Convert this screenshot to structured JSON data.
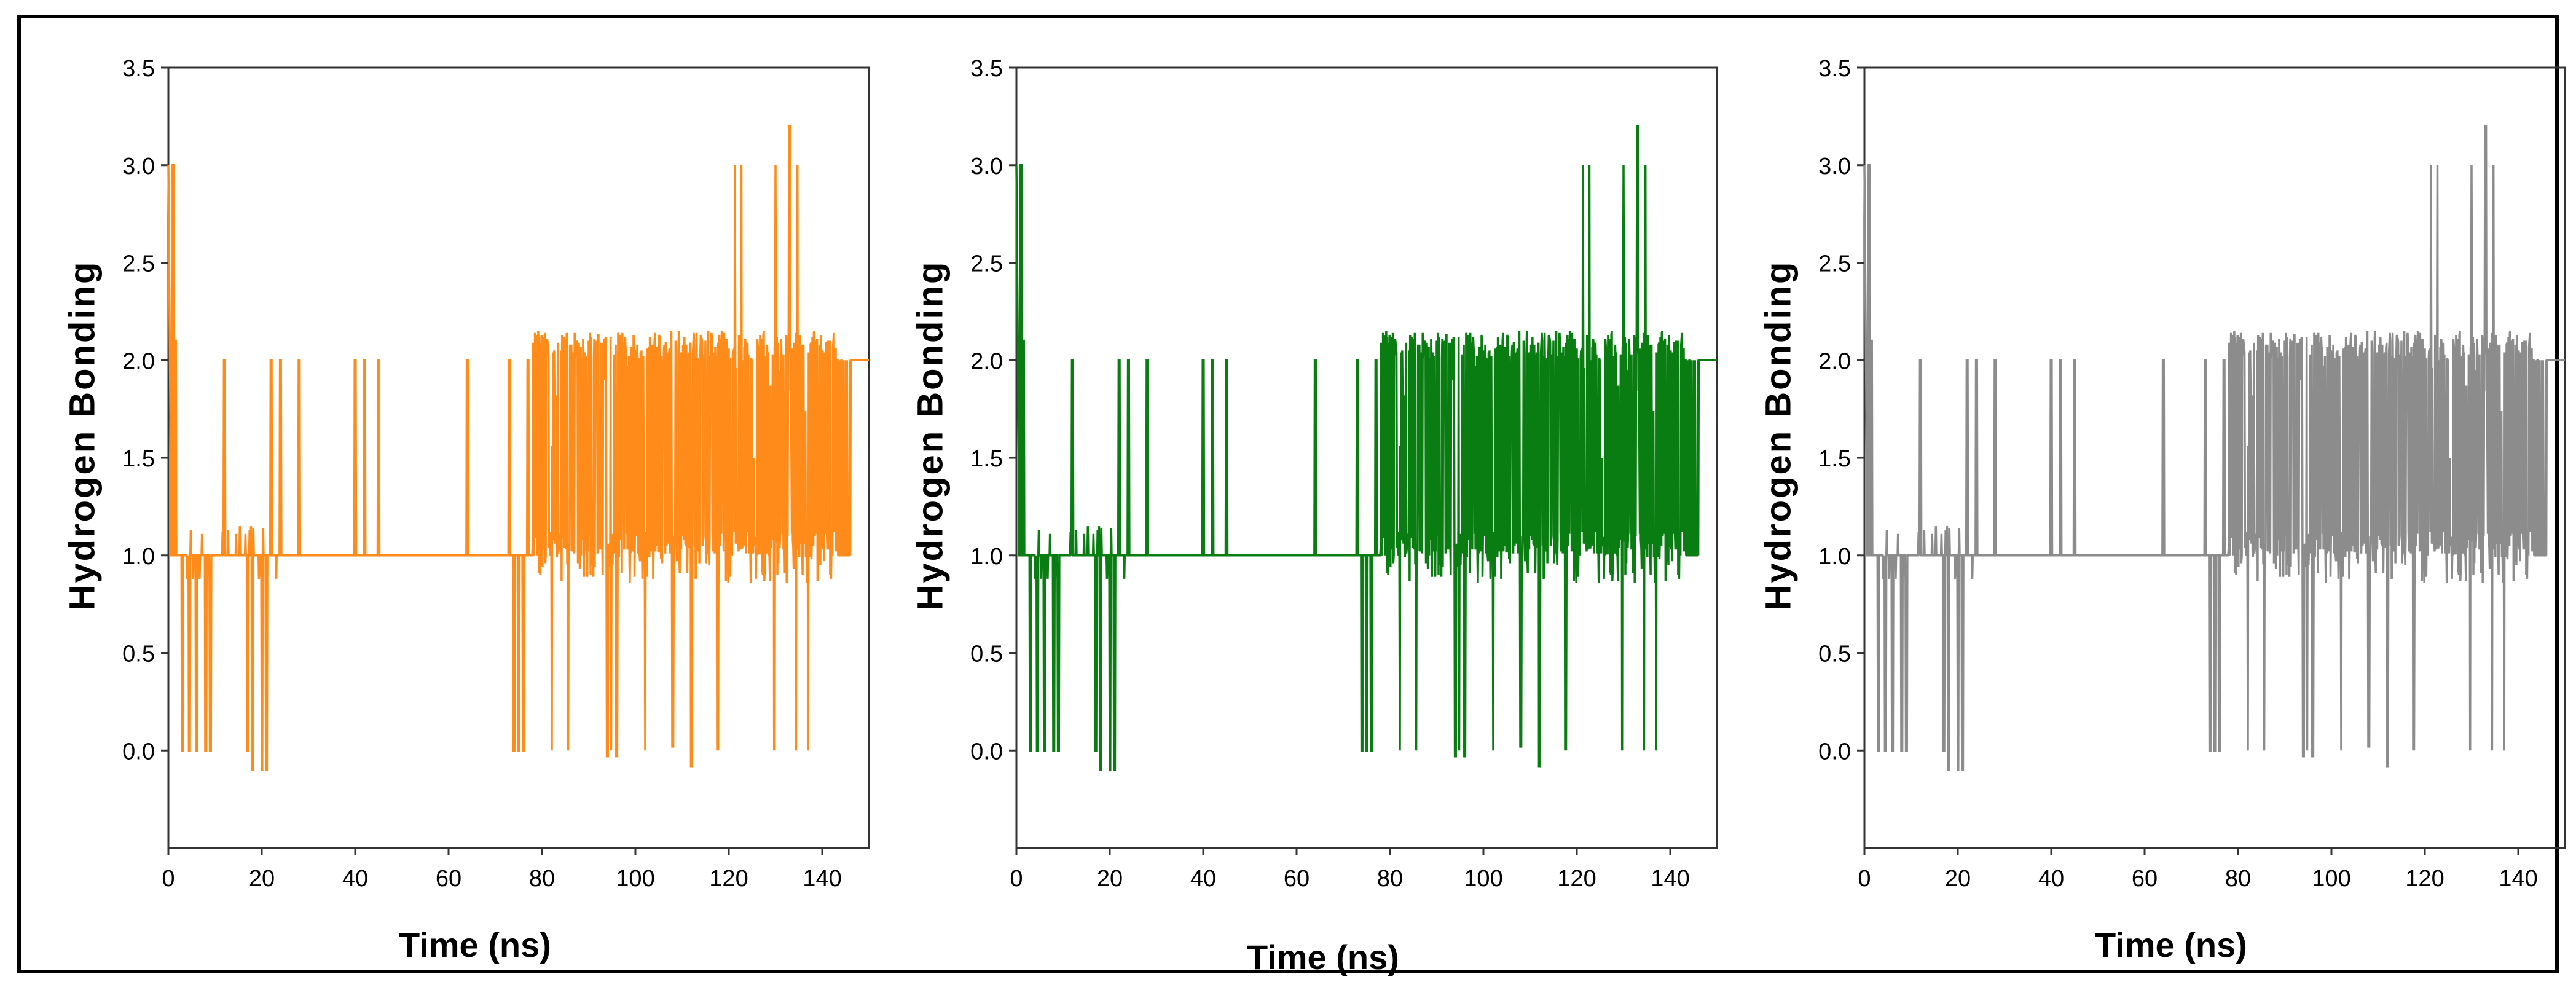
{
  "chart_data": [
    {
      "type": "line",
      "panel": "left",
      "color": "#FF8C1A",
      "xlabel": "Time (ns)",
      "ylabel": "Hydrogen Bonding",
      "xlim": [
        0,
        150
      ],
      "ylim": [
        -0.5,
        3.5
      ],
      "x_ticks": [
        "0",
        "20",
        "40",
        "60",
        "80",
        "100",
        "120",
        "140"
      ],
      "y_ticks": [
        "0.0",
        "0.5",
        "1.0",
        "1.5",
        "2.0",
        "2.5",
        "3.0",
        "3.5"
      ],
      "series": [
        {
          "name": "Hydrogen Bonding",
          "x": [],
          "values": []
        }
      ]
    },
    {
      "type": "line",
      "panel": "middle",
      "color": "#0A7D12",
      "xlabel": "Time (ns)",
      "ylabel": "Hydrogen Bonding",
      "xlim": [
        0,
        150
      ],
      "ylim": [
        -0.5,
        3.5
      ],
      "x_ticks": [
        "0",
        "20",
        "40",
        "60",
        "80",
        "100",
        "120",
        "140"
      ],
      "y_ticks": [
        "0.0",
        "0.5",
        "1.0",
        "1.5",
        "2.0",
        "2.5",
        "3.0",
        "3.5"
      ],
      "series": [
        {
          "name": "Hydrogen Bonding",
          "x": [],
          "values": []
        }
      ]
    },
    {
      "type": "line",
      "panel": "right",
      "color": "#8C8C8C",
      "xlabel": "Time (ns)",
      "ylabel": "Hydrogen Bonding",
      "xlim": [
        0,
        150
      ],
      "ylim": [
        -0.5,
        3.5
      ],
      "x_ticks": [
        "0",
        "20",
        "40",
        "60",
        "80",
        "100",
        "120",
        "140"
      ],
      "y_ticks": [
        "0.0",
        "0.5",
        "1.0",
        "1.5",
        "2.0",
        "2.5",
        "3.0",
        "3.5"
      ],
      "series": [
        {
          "name": "Hydrogen Bonding",
          "x": [],
          "values": []
        }
      ]
    }
  ]
}
